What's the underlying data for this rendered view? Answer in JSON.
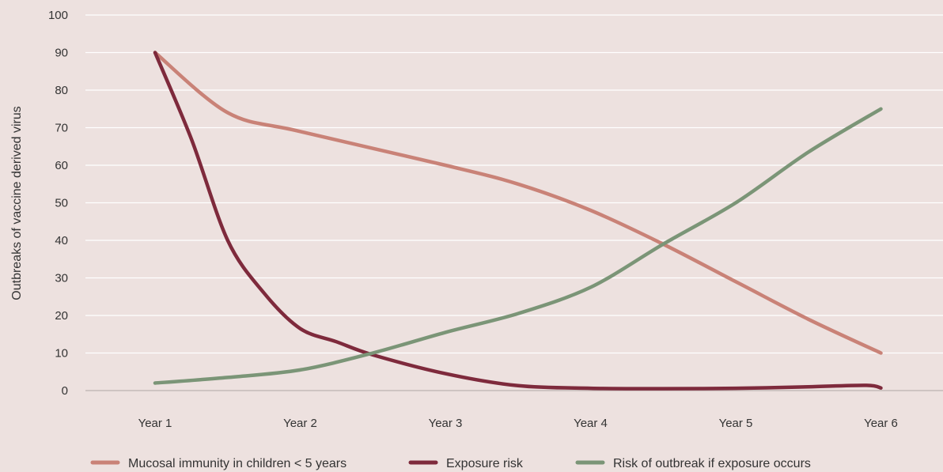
{
  "chart_data": {
    "type": "line",
    "title": "",
    "xlabel": "",
    "ylabel": "Outbreaks of vaccine derived virus",
    "ylim": [
      0,
      100
    ],
    "yticks": [
      0,
      10,
      20,
      30,
      40,
      50,
      60,
      70,
      80,
      90,
      100
    ],
    "grid": true,
    "legend_position": "bottom",
    "categories": [
      "Year 1",
      "Year 2",
      "Year 3",
      "Year 4",
      "Year 5",
      "Year 6"
    ],
    "series": [
      {
        "name": "Mucosal immunity in children < 5 years",
        "color": "#c98277",
        "x": [
          1,
          1.5,
          2,
          3,
          3.5,
          4,
          4.5,
          5,
          5.5,
          6
        ],
        "values": [
          90,
          74,
          69,
          60,
          55,
          48,
          39,
          29,
          19,
          10
        ]
      },
      {
        "name": "Exposure risk",
        "color": "#7e2a3c",
        "x": [
          1,
          1.25,
          1.5,
          1.75,
          2,
          2.25,
          2.5,
          3,
          3.5,
          4,
          4.5,
          5,
          5.5,
          5.9,
          6
        ],
        "values": [
          90,
          67,
          40,
          26,
          16.5,
          13,
          9.5,
          4.5,
          1.3,
          0.6,
          0.5,
          0.6,
          1.0,
          1.4,
          0.7
        ]
      },
      {
        "name": "Risk of outbreak if exposure occurs",
        "color": "#7b9577",
        "x": [
          1,
          1.5,
          2,
          2.5,
          3,
          3.5,
          4,
          4.5,
          5,
          5.5,
          6
        ],
        "values": [
          2,
          3.5,
          5.5,
          10,
          15.5,
          20.5,
          27.5,
          39,
          50,
          63.5,
          75
        ]
      }
    ]
  }
}
